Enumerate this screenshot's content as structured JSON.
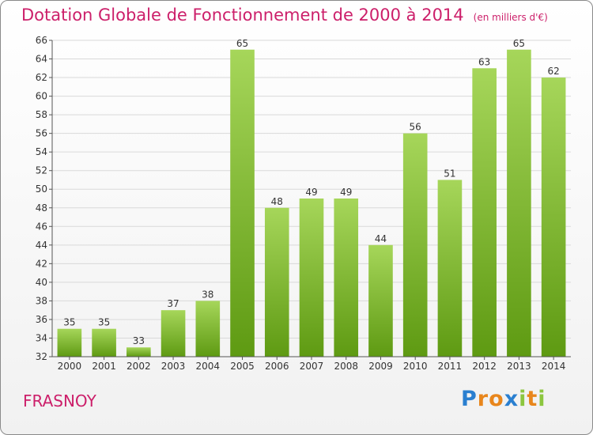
{
  "title": "Dotation Globale de Fonctionnement de 2000 à 2014",
  "subtitle": "(en milliers d'€)",
  "commune": "FRASNOY",
  "logo": {
    "letters": [
      {
        "char": "P",
        "color": "#2a7fd0"
      },
      {
        "char": "r",
        "color": "#e8861c"
      },
      {
        "char": "o",
        "color": "#e8861c"
      },
      {
        "char": "x",
        "color": "#2a7fd0"
      },
      {
        "char": "i",
        "color": "#8cc63f"
      },
      {
        "char": "t",
        "color": "#e8861c"
      },
      {
        "char": "i",
        "color": "#8cc63f"
      }
    ]
  },
  "colors": {
    "accent": "#cc1f6a",
    "bar_top": "#a6d65a",
    "bar_bottom": "#5e9a12",
    "grid": "#d9d9d9"
  },
  "chart_data": {
    "type": "bar",
    "categories": [
      "2000",
      "2001",
      "2002",
      "2003",
      "2004",
      "2005",
      "2006",
      "2007",
      "2008",
      "2009",
      "2010",
      "2011",
      "2012",
      "2013",
      "2014"
    ],
    "values": [
      35,
      35,
      33,
      37,
      38,
      65,
      48,
      49,
      49,
      44,
      56,
      51,
      63,
      65,
      62
    ],
    "title": "Dotation Globale de Fonctionnement de 2000 à 2014",
    "subtitle": "(en milliers d'€)",
    "xlabel": "",
    "ylabel": "",
    "ylim": [
      32,
      66
    ],
    "yticks": [
      32,
      34,
      36,
      38,
      40,
      42,
      44,
      46,
      48,
      50,
      52,
      54,
      56,
      58,
      60,
      62,
      64,
      66
    ],
    "grid": true,
    "legend": "none"
  }
}
